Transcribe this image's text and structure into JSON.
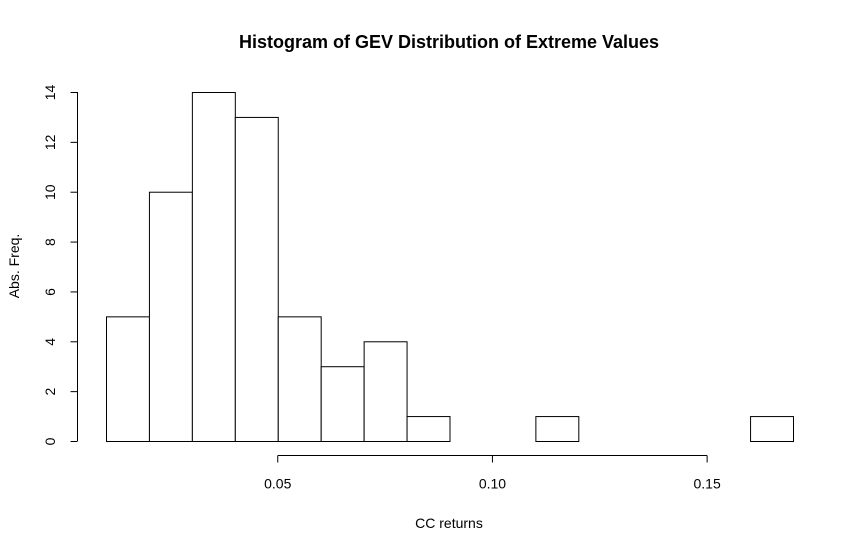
{
  "chart_data": {
    "type": "bar",
    "title": "Histogram of GEV Distribution of Extreme Values",
    "xlabel": "CC returns",
    "ylabel": "Abs. Freq.",
    "bin_edges": [
      0.01,
      0.02,
      0.03,
      0.04,
      0.05,
      0.06,
      0.07,
      0.08,
      0.09,
      0.1,
      0.11,
      0.12,
      0.13,
      0.14,
      0.15,
      0.16,
      0.17
    ],
    "values": [
      5,
      10,
      14,
      13,
      5,
      3,
      4,
      1,
      0,
      0,
      1,
      0,
      0,
      0,
      0,
      1
    ],
    "xticks": [
      0.05,
      0.1,
      0.15
    ],
    "xtick_labels": [
      "0.05",
      "0.10",
      "0.15"
    ],
    "yticks": [
      0,
      2,
      4,
      6,
      8,
      10,
      12,
      14
    ],
    "ytick_labels": [
      "0",
      "2",
      "4",
      "6",
      "8",
      "10",
      "12",
      "14"
    ],
    "xlim": [
      0.01,
      0.17
    ],
    "ylim": [
      0,
      14
    ],
    "grid": false,
    "colors": {
      "bar_fill": "#ffffff",
      "bar_stroke": "#000000"
    }
  }
}
